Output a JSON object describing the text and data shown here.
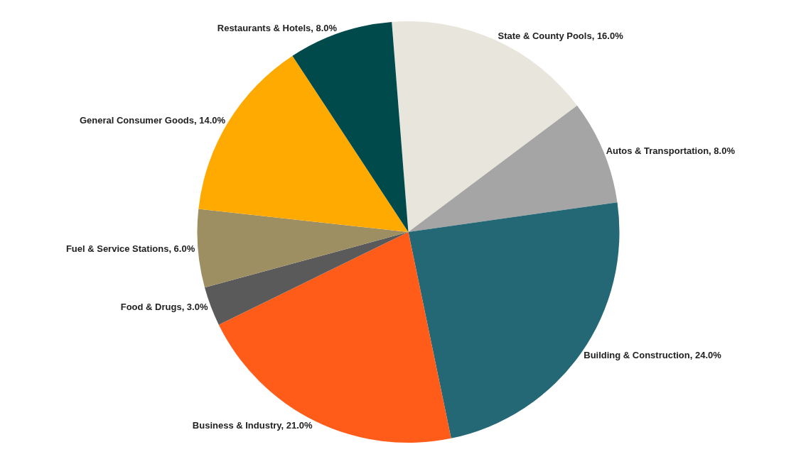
{
  "chart_data": {
    "type": "pie",
    "categories": [
      "State & County Pools",
      "Autos & Transportation",
      "Building & Construction",
      "Business & Industry",
      "Food & Drugs",
      "Fuel & Service Stations",
      "General Consumer Goods",
      "Restaurants & Hotels"
    ],
    "values": [
      16.0,
      8.0,
      24.0,
      21.0,
      3.0,
      6.0,
      14.0,
      8.0
    ],
    "value_labels": [
      "16.0%",
      "8.0%",
      "24.0%",
      "21.0%",
      "3.0%",
      "6.0%",
      "14.0%",
      "8.0%"
    ],
    "colors": [
      "#e8e5dc",
      "#a5a5a5",
      "#246876",
      "#ff5c1a",
      "#5a5a5a",
      "#9e8f63",
      "#ffaa00",
      "#004a4c"
    ],
    "legend": false
  }
}
